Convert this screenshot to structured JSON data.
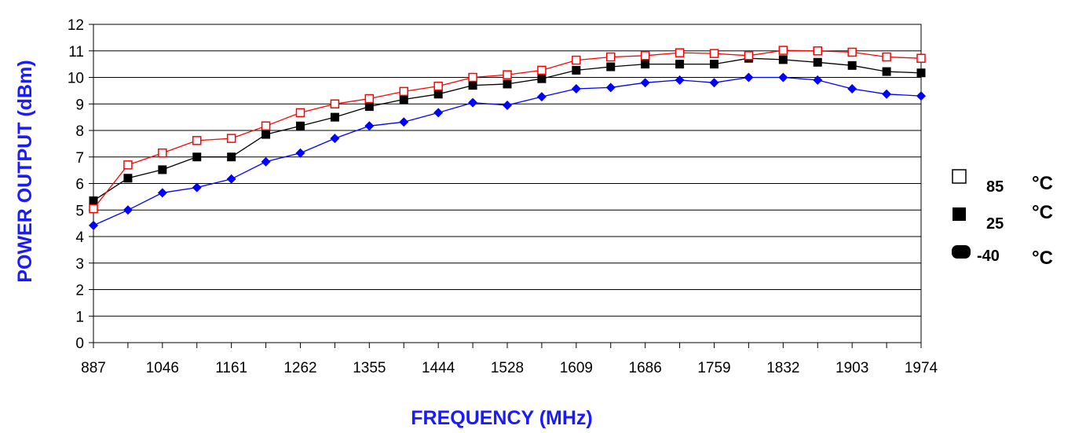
{
  "chart_data": {
    "type": "line",
    "xlabel": "FREQUENCY (MHz)",
    "ylabel": "POWER OUTPUT (dBm)",
    "ylim": [
      0,
      12
    ],
    "yticks": [
      0,
      1,
      2,
      3,
      4,
      5,
      6,
      7,
      8,
      9,
      10,
      11,
      12
    ],
    "categories": [
      "887",
      "",
      "1046",
      "",
      "1161",
      "",
      "1262",
      "",
      "1355",
      "",
      "1444",
      "",
      "1528",
      "",
      "1609",
      "",
      "1686",
      "",
      "1759",
      "",
      "1832",
      "",
      "1903",
      "",
      "1974"
    ],
    "grid": true,
    "legend_position": "right",
    "series": [
      {
        "name": "85",
        "unit": "°C",
        "color": "#ff0000",
        "marker": "open-square",
        "values": [
          5.05,
          6.7,
          7.15,
          7.62,
          7.7,
          8.17,
          8.67,
          9.0,
          9.2,
          9.47,
          9.67,
          10.0,
          10.1,
          10.27,
          10.65,
          10.77,
          10.82,
          10.93,
          10.9,
          10.82,
          11.02,
          11.0,
          10.95,
          10.77,
          10.72
        ]
      },
      {
        "name": "25",
        "unit": "°C",
        "color": "#000000",
        "marker": "filled-square",
        "values": [
          5.35,
          6.2,
          6.52,
          7.0,
          7.0,
          7.85,
          8.17,
          8.5,
          8.9,
          9.17,
          9.37,
          9.7,
          9.75,
          9.95,
          10.27,
          10.4,
          10.5,
          10.5,
          10.5,
          10.72,
          10.67,
          10.57,
          10.45,
          10.22,
          10.17
        ]
      },
      {
        "name": "-40",
        "unit": "°C",
        "color": "#0000ff",
        "marker": "diamond",
        "values": [
          4.42,
          5.0,
          5.65,
          5.85,
          6.17,
          6.82,
          7.15,
          7.7,
          8.17,
          8.32,
          8.67,
          9.05,
          8.95,
          9.27,
          9.57,
          9.62,
          9.8,
          9.9,
          9.8,
          10.0,
          10.0,
          9.9,
          9.57,
          9.37,
          9.3
        ]
      }
    ]
  }
}
